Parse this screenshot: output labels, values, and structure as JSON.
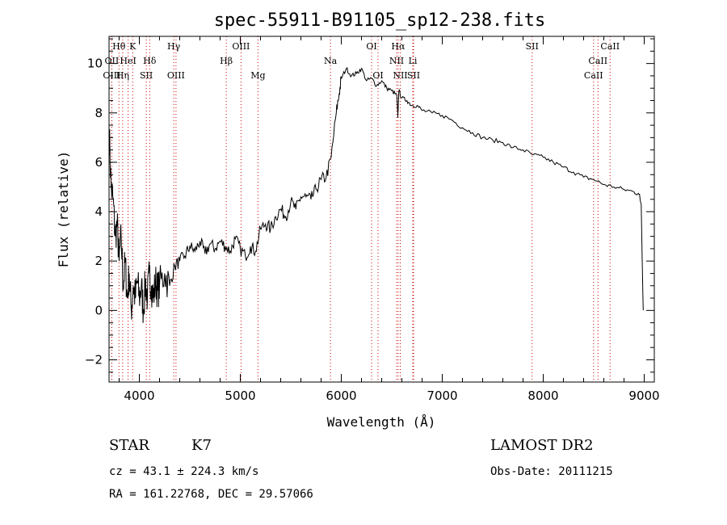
{
  "chart_data": {
    "type": "line",
    "title": "spec-55911-B91105_sp12-238.fits",
    "xlabel": "Wavelength (Å)",
    "ylabel": "Flux (relative)",
    "xlim": [
      3700,
      9100
    ],
    "ylim": [
      -2.9,
      11.1
    ],
    "xticks": [
      4000,
      5000,
      6000,
      7000,
      8000,
      9000
    ],
    "yticks": [
      -2,
      0,
      2,
      4,
      6,
      8,
      10
    ],
    "grid": false,
    "line_color": "#000000",
    "marker_line_color": "#cc0000",
    "series": [
      {
        "x": [
          3700,
          3720,
          3740,
          3760,
          3780,
          3800,
          3820,
          3840,
          3860,
          3880,
          3900,
          3920,
          3940,
          3960,
          3980,
          4000,
          4020,
          4040,
          4060,
          4080,
          4100,
          4120,
          4140,
          4160,
          4180,
          4200,
          4250,
          4300,
          4350,
          4400,
          4450,
          4500,
          4550,
          4600,
          4650,
          4700,
          4750,
          4800,
          4850,
          4900,
          4950,
          5000,
          5050,
          5100,
          5150,
          5200,
          5250,
          5300,
          5350,
          5400,
          5450,
          5500,
          5550,
          5600,
          5650,
          5700,
          5750,
          5800,
          5850,
          5900,
          5950,
          5980,
          6000,
          6050,
          6100,
          6150,
          6200,
          6250,
          6300,
          6350,
          6400,
          6450,
          6500,
          6550,
          6560,
          6570,
          6600,
          6650,
          6700,
          6750,
          6800,
          6900,
          7000,
          7100,
          7200,
          7300,
          7400,
          7500,
          7600,
          7700,
          7800,
          7900,
          8000,
          8100,
          8200,
          8300,
          8400,
          8500,
          8600,
          8700,
          8800,
          8900,
          8950,
          8970,
          8990
        ],
        "y": [
          7.5,
          5.0,
          4.5,
          3.0,
          3.5,
          2.0,
          3.0,
          1.0,
          2.0,
          0.5,
          1.5,
          0.0,
          1.0,
          0.5,
          1.2,
          0.5,
          1.0,
          0.0,
          1.2,
          0.5,
          1.5,
          1.0,
          0.5,
          1.2,
          0.8,
          1.0,
          1.5,
          1.0,
          1.8,
          2.0,
          2.2,
          2.6,
          2.4,
          2.8,
          2.3,
          2.7,
          2.5,
          2.8,
          2.6,
          2.4,
          2.9,
          2.5,
          2.2,
          2.6,
          2.4,
          3.3,
          3.5,
          3.3,
          3.8,
          4.1,
          3.8,
          4.4,
          4.1,
          4.6,
          4.6,
          4.5,
          4.9,
          5.3,
          5.4,
          6.2,
          8.0,
          8.8,
          9.4,
          9.8,
          9.5,
          9.6,
          9.8,
          9.3,
          9.4,
          9.1,
          9.3,
          9.0,
          8.9,
          8.7,
          7.8,
          8.9,
          8.6,
          8.5,
          8.3,
          8.3,
          8.1,
          8.0,
          7.9,
          7.7,
          7.4,
          7.2,
          7.0,
          6.9,
          6.8,
          6.6,
          6.5,
          6.3,
          6.2,
          6.0,
          5.8,
          5.6,
          5.4,
          5.3,
          5.1,
          5.0,
          4.9,
          4.8,
          4.7,
          4.3,
          0.0
        ]
      }
    ],
    "lines": [
      {
        "label": "Hθ",
        "x": 3798,
        "row": 0
      },
      {
        "label": "K",
        "x": 3934,
        "row": 0
      },
      {
        "label": "Hγ",
        "x": 4341,
        "row": 0
      },
      {
        "label": "OIII",
        "x": 5007,
        "row": 0
      },
      {
        "label": "OI",
        "x": 6300,
        "row": 0
      },
      {
        "label": "Hα",
        "x": 6563,
        "row": 0
      },
      {
        "label": "SII",
        "x": 7890,
        "row": 0
      },
      {
        "label": "CaII",
        "x": 8662,
        "row": 0
      },
      {
        "label": "OII",
        "x": 3727,
        "row": 1
      },
      {
        "label": "HeI",
        "x": 3889,
        "row": 1
      },
      {
        "label": "Hδ",
        "x": 4102,
        "row": 1
      },
      {
        "label": "Hβ",
        "x": 4861,
        "row": 1
      },
      {
        "label": "Na",
        "x": 5893,
        "row": 1
      },
      {
        "label": "NII",
        "x": 6548,
        "row": 1
      },
      {
        "label": "Li",
        "x": 6708,
        "row": 1
      },
      {
        "label": "CaII",
        "x": 8542,
        "row": 1
      },
      {
        "label": "OIII",
        "x": 3727,
        "row": 2
      },
      {
        "label": "Hη",
        "x": 3835,
        "row": 2
      },
      {
        "label": "SII",
        "x": 4069,
        "row": 2
      },
      {
        "label": "OIII",
        "x": 4363,
        "row": 2
      },
      {
        "label": "Mg",
        "x": 5175,
        "row": 2
      },
      {
        "label": "OI",
        "x": 6364,
        "row": 2
      },
      {
        "label": "NII",
        "x": 6584,
        "row": 2
      },
      {
        "label": "SII",
        "x": 6716,
        "row": 2
      },
      {
        "label": "CaII",
        "x": 8498,
        "row": 2
      }
    ]
  },
  "info": {
    "object_class": "STAR",
    "subclass": "K7",
    "survey": "LAMOST DR2",
    "redshift": "cz = 43.1 ± 224.3 km/s",
    "obs_date": "Obs-Date: 20111215",
    "coords": "RA = 161.22768, DEC =  29.57066"
  }
}
